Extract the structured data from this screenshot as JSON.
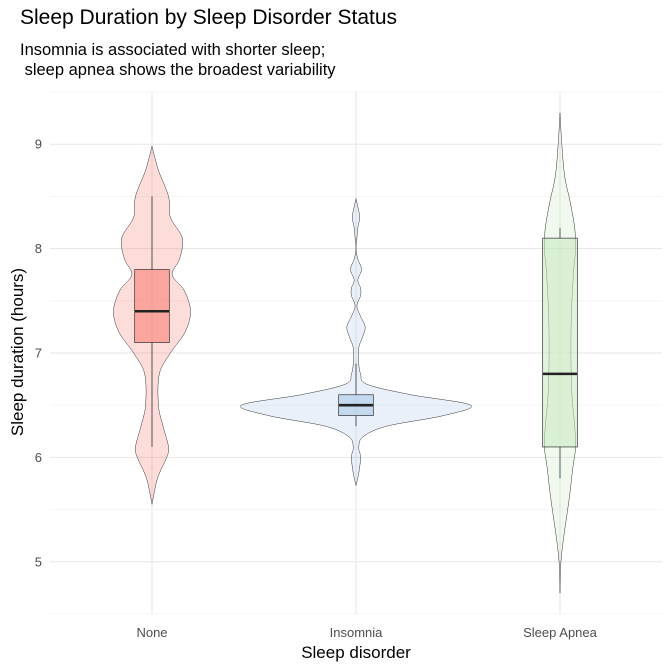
{
  "chart_data": {
    "type": "violin",
    "title": "Sleep Duration by Sleep Disorder Status",
    "subtitle": "Insomnia is associated with shorter sleep;\n sleep apnea shows the broadest variability",
    "xlabel": "Sleep disorder",
    "ylabel": "Sleep duration (hours)",
    "categories": [
      "None",
      "Insomnia",
      "Sleep Apnea"
    ],
    "ylim": [
      4.5,
      9.5
    ],
    "yticks": [
      5,
      6,
      7,
      8,
      9
    ],
    "grid": true,
    "series": [
      {
        "category": "None",
        "color": "#F8766D",
        "box": {
          "whisker_low": 6.1,
          "q1": 7.1,
          "median": 7.4,
          "q3": 7.8,
          "whisker_high": 8.5
        },
        "violin": {
          "y": [
            5.55,
            5.8,
            6.0,
            6.1,
            6.3,
            6.5,
            6.8,
            7.0,
            7.2,
            7.4,
            7.6,
            7.75,
            7.9,
            8.1,
            8.3,
            8.5,
            8.75,
            8.98
          ],
          "halfwidth": [
            0.0,
            0.06,
            0.16,
            0.18,
            0.12,
            0.07,
            0.08,
            0.2,
            0.36,
            0.42,
            0.35,
            0.22,
            0.3,
            0.33,
            0.2,
            0.18,
            0.07,
            0.0
          ]
        }
      },
      {
        "category": "Insomnia",
        "color": "#A6C4E6",
        "box": {
          "whisker_low": 6.3,
          "q1": 6.4,
          "median": 6.5,
          "q3": 6.6,
          "whisker_high": 6.9
        },
        "violin": {
          "y": [
            5.73,
            5.85,
            6.0,
            6.1,
            6.2,
            6.3,
            6.4,
            6.5,
            6.6,
            6.7,
            6.8,
            6.9,
            7.05,
            7.15,
            7.25,
            7.35,
            7.45,
            7.55,
            7.62,
            7.7,
            7.8,
            7.9,
            8.0,
            8.1,
            8.2,
            8.3,
            8.4,
            8.48
          ],
          "halfwidth": [
            0.0,
            0.03,
            0.05,
            0.03,
            0.08,
            0.34,
            0.95,
            1.25,
            0.6,
            0.12,
            0.05,
            0.03,
            0.03,
            0.07,
            0.1,
            0.05,
            0.01,
            0.05,
            0.05,
            0.02,
            0.06,
            0.02,
            0.0,
            0.01,
            0.02,
            0.04,
            0.02,
            0.0
          ]
        }
      },
      {
        "category": "Sleep Apnea",
        "color": "#C7E9C0",
        "box": {
          "whisker_low": 5.8,
          "q1": 6.1,
          "median": 6.8,
          "q3": 8.1,
          "whisker_high": 8.2
        },
        "violin": {
          "y": [
            4.7,
            5.0,
            5.3,
            5.6,
            5.9,
            6.1,
            6.3,
            6.6,
            6.9,
            7.2,
            7.5,
            7.8,
            8.0,
            8.2,
            8.45,
            8.7,
            9.0,
            9.3
          ],
          "halfwidth": [
            0.0,
            0.01,
            0.05,
            0.1,
            0.14,
            0.17,
            0.16,
            0.13,
            0.12,
            0.12,
            0.13,
            0.15,
            0.17,
            0.16,
            0.11,
            0.05,
            0.02,
            0.0
          ]
        }
      }
    ]
  }
}
